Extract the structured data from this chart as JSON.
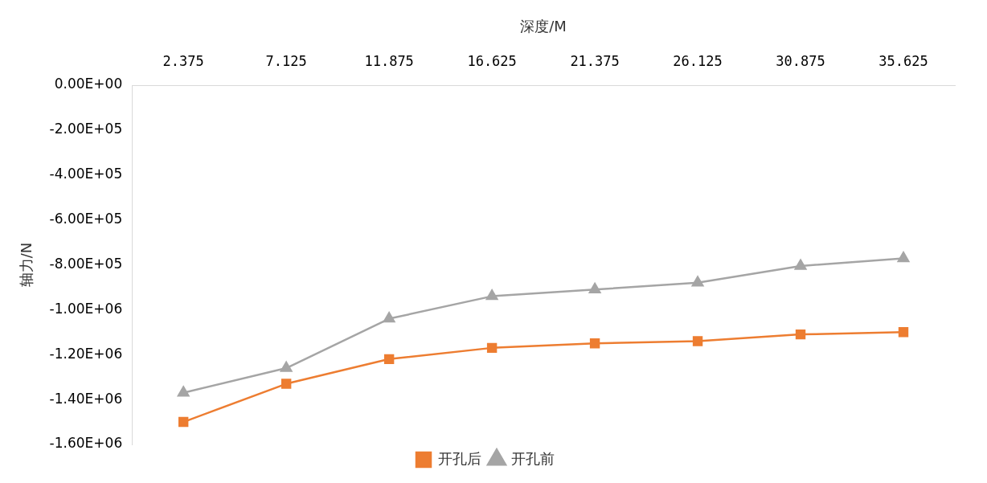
{
  "chart_data": {
    "type": "line",
    "xlabel": "深度/M",
    "ylabel": "轴力/N",
    "categories": [
      "2.375",
      "7.125",
      "11.875",
      "16.625",
      "21.375",
      "26.125",
      "30.875",
      "35.625"
    ],
    "series": [
      {
        "name": "开孔后",
        "color": "#ed7d31",
        "marker": "square",
        "values": [
          -1500000,
          -1330000,
          -1220000,
          -1170000,
          -1150000,
          -1140000,
          -1110000,
          -1100000
        ]
      },
      {
        "name": "开孔前",
        "color": "#a5a5a5",
        "marker": "triangle",
        "values": [
          -1370000,
          -1260000,
          -1040000,
          -940000,
          -910000,
          -880000,
          -805000,
          -771000
        ]
      }
    ],
    "ylim": [
      -1600000,
      0
    ],
    "yticks": [
      {
        "value": 0,
        "label": "0.00E+00"
      },
      {
        "value": -200000,
        "label": "-2.00E+05"
      },
      {
        "value": -400000,
        "label": "-4.00E+05"
      },
      {
        "value": -600000,
        "label": "-6.00E+05"
      },
      {
        "value": -800000,
        "label": "-8.00E+05"
      },
      {
        "value": -1000000,
        "label": "-1.00E+06"
      },
      {
        "value": -1200000,
        "label": "-1.20E+06"
      },
      {
        "value": -1400000,
        "label": "-1.40E+06"
      },
      {
        "value": -1600000,
        "label": "-1.60E+06"
      }
    ],
    "grid": false,
    "legend": "bottom",
    "line_style": "solid"
  }
}
